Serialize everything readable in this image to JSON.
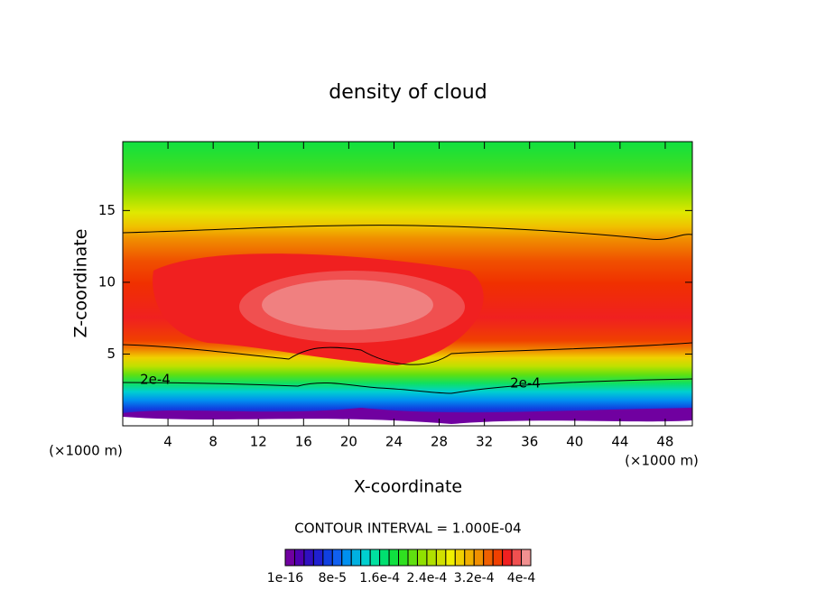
{
  "chart_data": {
    "type": "contour",
    "title": "density of cloud",
    "x_label": "X-coordinate",
    "y_label": "Z-coordinate",
    "x_unit": "(×1000 m)",
    "x_unit_right": "(×1000 m)",
    "xlim": [
      0,
      50.4
    ],
    "ylim": [
      0,
      19.8
    ],
    "xticks": [
      4,
      8,
      12,
      16,
      20,
      24,
      28,
      32,
      36,
      40,
      44,
      48
    ],
    "yticks": [
      5,
      10,
      15
    ],
    "contour_labels": [
      "2e-4",
      "2e-4"
    ],
    "contour_interval": "CONTOUR INTERVAL = 1.000E-04",
    "colorbar": {
      "colors": [
        "#7000a0",
        "#5000b0",
        "#3010c0",
        "#2020d0",
        "#1040e0",
        "#1060f0",
        "#0090f0",
        "#00b0e0",
        "#00d0d0",
        "#00e0a0",
        "#00e070",
        "#10e040",
        "#30e020",
        "#60e010",
        "#90e000",
        "#b0e000",
        "#d0e000",
        "#f0f000",
        "#f0d000",
        "#f0b000",
        "#f09000",
        "#f06000",
        "#f04000",
        "#f02020",
        "#f05050",
        "#f09090"
      ],
      "ticks": [
        {
          "value": 1e-16,
          "label": "1e-16"
        },
        {
          "value": 8e-05,
          "label": "8e-5"
        },
        {
          "value": 0.00016,
          "label": "1.6e-4"
        },
        {
          "value": 0.00024,
          "label": "2.4e-4"
        },
        {
          "value": 0.00032,
          "label": "3.2e-4"
        },
        {
          "value": 0.0004,
          "label": "4e-4"
        }
      ]
    }
  }
}
